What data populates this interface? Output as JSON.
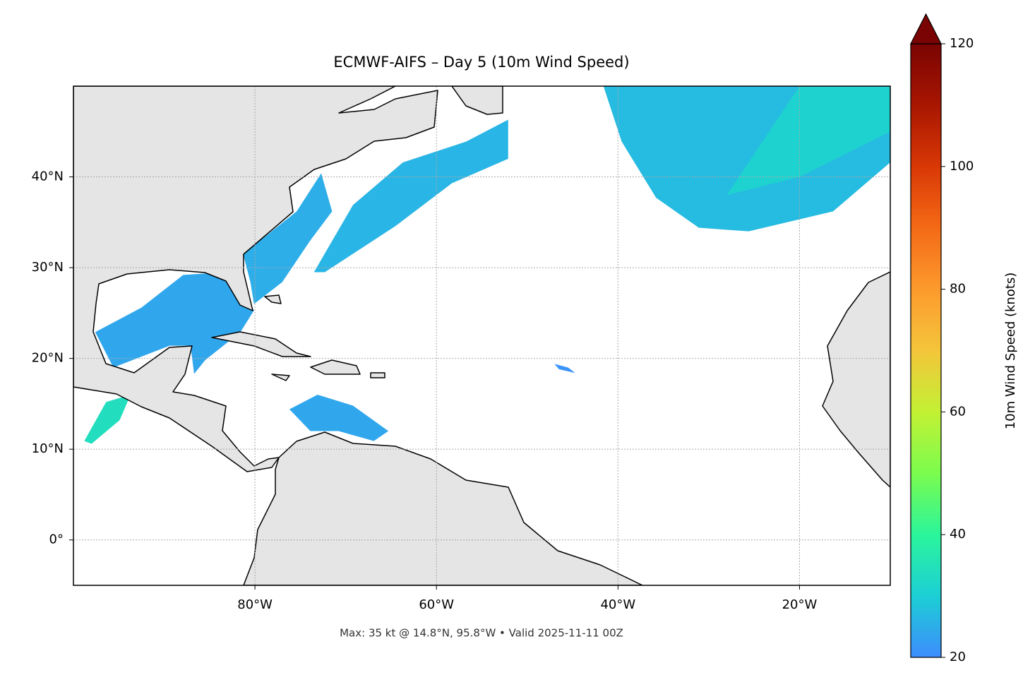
{
  "chart_data": {
    "type": "map",
    "title": "ECMWF-AIFS – Day 5 (10m Wind Speed)",
    "annotation": "Max: 35 kt @ 14.8°N, 95.8°W • Valid 2025-11-11 00Z",
    "xlim": [
      -100,
      -10
    ],
    "ylim": [
      -5,
      50
    ],
    "xticks": [
      {
        "value": -80,
        "label": "80°W"
      },
      {
        "value": -60,
        "label": "60°W"
      },
      {
        "value": -40,
        "label": "40°W"
      },
      {
        "value": -20,
        "label": "20°W"
      }
    ],
    "yticks": [
      {
        "value": 0,
        "label": "0°"
      },
      {
        "value": 10,
        "label": "10°N"
      },
      {
        "value": 20,
        "label": "20°N"
      },
      {
        "value": 30,
        "label": "30°N"
      },
      {
        "value": 40,
        "label": "40°N"
      }
    ],
    "grid": true,
    "colorbar": {
      "label": "10m Wind Speed (knots)",
      "lim": [
        20,
        120
      ],
      "ticks": [
        20,
        40,
        60,
        80,
        100,
        120
      ],
      "extend": "max",
      "colors": [
        "#3d8dfd",
        "#1ccfd5",
        "#2bf59b",
        "#7bfc4e",
        "#c3f134",
        "#f4c53a",
        "#fd9a2d",
        "#f46a16",
        "#d93806",
        "#a81601",
        "#7a0403"
      ]
    },
    "regions": [
      {
        "speed": 24,
        "polygon": [
          [
            -97.6,
            22.9
          ],
          [
            -92.5,
            25.6
          ],
          [
            -87.9,
            29.2
          ],
          [
            -83.2,
            29.5
          ],
          [
            -80.1,
            25.3
          ],
          [
            -81.6,
            22.9
          ],
          [
            -85.5,
            19.8
          ],
          [
            -86.7,
            18.3
          ],
          [
            -87.1,
            21.4
          ],
          [
            -89.4,
            21.4
          ],
          [
            -95.6,
            19.0
          ]
        ]
      },
      {
        "speed": 25,
        "polygon": [
          [
            -81.3,
            31.5
          ],
          [
            -75.4,
            36.2
          ],
          [
            -72.7,
            40.4
          ],
          [
            -71.5,
            36.2
          ],
          [
            -73.9,
            33.0
          ],
          [
            -77.0,
            28.4
          ],
          [
            -80.1,
            26.0
          ],
          [
            -80.5,
            28.4
          ]
        ]
      },
      {
        "speed": 26,
        "polygon": [
          [
            -73.5,
            29.5
          ],
          [
            -69.2,
            36.9
          ],
          [
            -63.7,
            41.6
          ],
          [
            -56.7,
            43.9
          ],
          [
            -52.1,
            46.3
          ],
          [
            -52.1,
            42.0
          ],
          [
            -58.3,
            39.3
          ],
          [
            -64.5,
            34.6
          ],
          [
            -72.3,
            29.5
          ]
        ]
      },
      {
        "speed": 27,
        "polygon": [
          [
            -41.6,
            50
          ],
          [
            -10,
            50
          ],
          [
            -10,
            41.6
          ],
          [
            -16.3,
            36.2
          ],
          [
            -25.6,
            34.0
          ],
          [
            -31.1,
            34.4
          ],
          [
            -35.8,
            37.7
          ],
          [
            -39.6,
            43.9
          ]
        ]
      },
      {
        "speed": 31,
        "polygon": [
          [
            -20,
            50
          ],
          [
            -10,
            50
          ],
          [
            -10,
            45
          ],
          [
            -20,
            40
          ],
          [
            -28,
            38
          ],
          [
            -24,
            44
          ]
        ]
      },
      {
        "speed": 24,
        "polygon": [
          [
            -76.2,
            14.4
          ],
          [
            -73.1,
            16.0
          ],
          [
            -69.2,
            14.8
          ],
          [
            -65.3,
            12.0
          ],
          [
            -66.9,
            10.9
          ],
          [
            -70.8,
            12.0
          ],
          [
            -73.9,
            12.0
          ]
        ]
      },
      {
        "speed": 34,
        "polygon": [
          [
            -98.8,
            10.9
          ],
          [
            -96.4,
            15.2
          ],
          [
            -93.7,
            16.0
          ],
          [
            -94.9,
            13.2
          ],
          [
            -98.0,
            10.6
          ]
        ]
      },
      {
        "speed": 21,
        "polygon": [
          [
            -47.0,
            19.4
          ],
          [
            -45.5,
            19.0
          ],
          [
            -44.7,
            18.4
          ],
          [
            -46.5,
            18.8
          ]
        ]
      }
    ]
  }
}
